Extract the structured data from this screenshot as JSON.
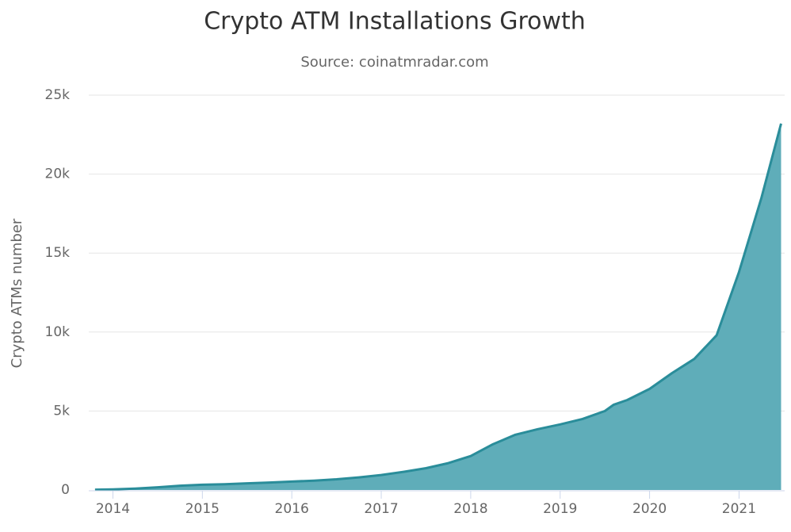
{
  "chart_data": {
    "type": "area",
    "title": "Crypto ATM Installations Growth",
    "subtitle": "Source: coinatmradar.com",
    "y_label": "Crypto ATMs number",
    "color": "#5fadb9",
    "line_color": "#2a8d9a",
    "x": [
      2013.8,
      2014.0,
      2014.25,
      2014.5,
      2014.75,
      2015.0,
      2015.25,
      2015.5,
      2015.75,
      2016.0,
      2016.25,
      2016.5,
      2016.75,
      2017.0,
      2017.25,
      2017.5,
      2017.75,
      2018.0,
      2018.25,
      2018.5,
      2018.75,
      2019.0,
      2019.25,
      2019.5,
      2019.6,
      2019.75,
      2020.0,
      2020.25,
      2020.5,
      2020.75,
      2021.0,
      2021.25,
      2021.47
    ],
    "values": [
      20,
      40,
      90,
      170,
      270,
      330,
      360,
      420,
      470,
      530,
      590,
      680,
      800,
      950,
      1150,
      1380,
      1700,
      2150,
      2900,
      3500,
      3850,
      4150,
      4500,
      5000,
      5400,
      5700,
      6400,
      7400,
      8300,
      9800,
      13800,
      18500,
      23200
    ],
    "xlim": [
      2013.73,
      2021.51
    ],
    "xticks": [
      2014,
      2015,
      2016,
      2017,
      2018,
      2019,
      2020,
      2021
    ],
    "ylim": [
      0,
      25000
    ],
    "yticks": [
      0,
      {
        "value": 5000,
        "label": "5k"
      },
      {
        "value": 10000,
        "label": "10k"
      },
      {
        "value": 15000,
        "label": "15k"
      },
      {
        "value": 20000,
        "label": "20k"
      },
      {
        "value": 25000,
        "label": "25k"
      }
    ],
    "grid": true
  }
}
